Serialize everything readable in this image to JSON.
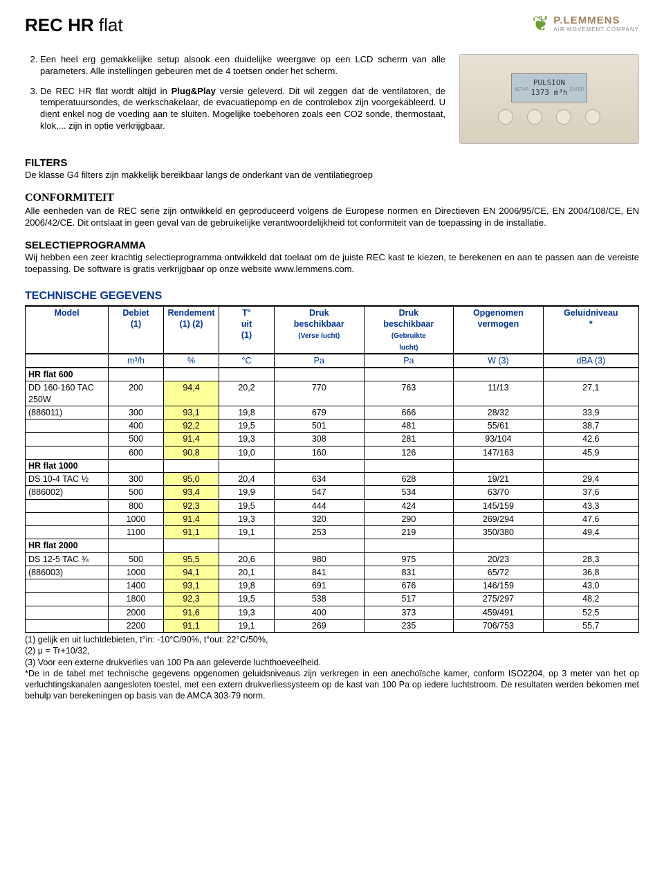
{
  "header": {
    "title_bold": "REC HR",
    "title_light": " flat",
    "logo_brand": "P.LEMMENS",
    "logo_tagline": "AIR MOVEMENT COMPANY"
  },
  "intro": {
    "item2": "Een heel erg gemakkelijke setup alsook een duidelijke weergave op een LCD scherm van alle parameters. Alle instellingen gebeuren met de 4 toetsen onder het scherm.",
    "item3_a": "De REC HR flat wordt altijd in ",
    "item3_bold": "Plug&Play",
    "item3_b": " versie geleverd. Dit wil zeggen dat de ventilatoren, de temperatuursondes, de werkschakelaar, de evacuatiepomp en de controlebox zijn voorgekableerd. U dient enkel nog de voeding aan te sluiten. Mogelijke toebehoren zoals een CO2 sonde, thermostaat, klok,... zijn in optie verkrijgbaar."
  },
  "lcd": {
    "line1": "PULSION",
    "line2": "1373 m³h"
  },
  "filters": {
    "title": "FILTERS",
    "body": "De klasse G4 filters zijn makkelijk bereikbaar langs de onderkant van de ventilatiegroep"
  },
  "conformiteit": {
    "title": "CONFORMITEIT",
    "body": "Alle eenheden van de REC serie zijn ontwikkeld en geproduceerd volgens de Europese normen en Directieven EN 2006/95/CE, EN 2004/108/CE, EN 2006/42/CE. Dit ontslaat in geen geval van de gebruikelijke verantwoordelijkheid tot conformiteit van de toepassing in de installatie."
  },
  "selectie": {
    "title": "SELECTIEPROGRAMMA",
    "body": "Wij hebben een  zeer krachtig selectieprogramma ontwikkeld dat toelaat om de juiste REC kast te kiezen, te berekenen en aan te passen aan de vereiste toepassing. De software is gratis verkrijgbaar op onze website www.lemmens.com."
  },
  "tech": {
    "title": "TECHNISCHE GEGEVENS",
    "columns": [
      "Model",
      "Debiet (1)",
      "Rendement (1) (2)",
      "T° uit (1)",
      "Druk beschikbaar (Verse lucht)",
      "Druk beschikbaar (Gebruikte lucht)",
      "Opgenomen vermogen",
      "Geluidniveau *"
    ],
    "units": [
      "",
      "m³/h",
      "%",
      "°C",
      "Pa",
      "Pa",
      "W (3)",
      "dBA (3)"
    ],
    "groups": [
      {
        "name": "HR flat 600",
        "rows": [
          [
            "DD 160-160 TAC 250W",
            "200",
            "94,4",
            "20,2",
            "770",
            "763",
            "11/13",
            "27,1"
          ],
          [
            "(886011)",
            "300",
            "93,1",
            "19,8",
            "679",
            "666",
            "28/32",
            "33,9"
          ],
          [
            "",
            "400",
            "92,2",
            "19,5",
            "501",
            "481",
            "55/61",
            "38,7"
          ],
          [
            "",
            "500",
            "91,4",
            "19,3",
            "308",
            "281",
            "93/104",
            "42,6"
          ],
          [
            "",
            "600",
            "90,8",
            "19,0",
            "160",
            "126",
            "147/163",
            "45,9"
          ]
        ]
      },
      {
        "name": "HR flat 1000",
        "rows": [
          [
            "DS 10-4 TAC ½",
            "300",
            "95,0",
            "20,4",
            "634",
            "628",
            "19/21",
            "29,4"
          ],
          [
            "(886002)",
            "500",
            "93,4",
            "19,9",
            "547",
            "534",
            "63/70",
            "37,6"
          ],
          [
            "",
            "800",
            "92,3",
            "19,5",
            "444",
            "424",
            "145/159",
            "43,3"
          ],
          [
            "",
            "1000",
            "91,4",
            "19,3",
            "320",
            "290",
            "269/294",
            "47,6"
          ],
          [
            "",
            "1100",
            "91,1",
            "19,1",
            "253",
            "219",
            "350/380",
            "49,4"
          ]
        ]
      },
      {
        "name": "HR flat 2000",
        "rows": [
          [
            "DS 12-5 TAC ¾",
            "500",
            "95,5",
            "20,6",
            "980",
            "975",
            "20/23",
            "28,3"
          ],
          [
            "(886003)",
            "1000",
            "94,1",
            "20,1",
            "841",
            "831",
            "65/72",
            "36,8"
          ],
          [
            "",
            "1400",
            "93,1",
            "19,8",
            "691",
            "676",
            "146/159",
            "43,0"
          ],
          [
            "",
            "1800",
            "92,3",
            "19,5",
            "538",
            "517",
            "275/297",
            "48,2"
          ],
          [
            "",
            "2000",
            "91,6",
            "19,3",
            "400",
            "373",
            "459/491",
            "52,5"
          ],
          [
            "",
            "2200",
            "91,1",
            "19,1",
            "269",
            "235",
            "706/753",
            "55,7"
          ]
        ]
      }
    ]
  },
  "footnotes": {
    "l1": "(1) gelijk en uit luchtdebieten, t°in: -10°C/90%, t°out: 22°C/50%,",
    "l2": "(2) μ = Tr+10/32,",
    "l3": "(3) Voor een externe drukverlies van 100 Pa aan geleverde luchthoeveelheid.",
    "l4": "*De in de tabel met technische gegevens opgenomen geluidsniveaus zijn verkregen in een anechoïsche kamer, conform ISO2204, op 3 meter van het op verluchtingskanalen aangesloten toestel, met een extern drukverliessysteem op de kast van 100 Pa op iedere luchtstroom.  De resultaten werden bekomen met behulp van berekeningen op basis van de AMCA 303-79 norm."
  }
}
